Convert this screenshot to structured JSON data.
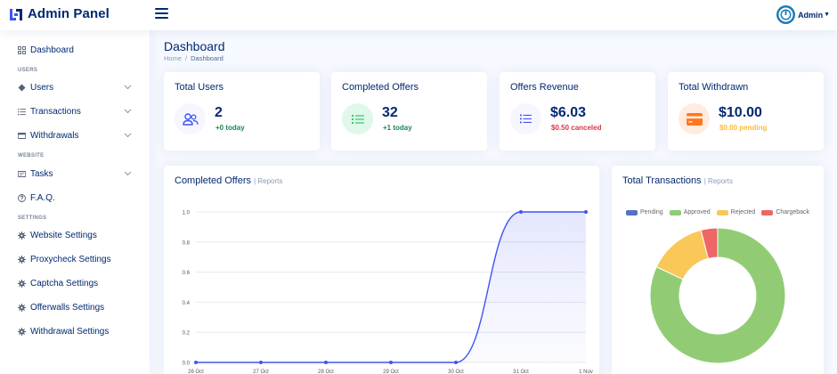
{
  "app": {
    "title": "Admin Panel",
    "user": "Admin"
  },
  "colors": {
    "primary": "#4154f1",
    "navy": "#012970",
    "green": "#2eca6a",
    "red": "#ff4d4d",
    "amber": "#ff771d"
  },
  "sidebar": {
    "items": [
      {
        "label": "Dashboard",
        "icon": "grid-icon"
      },
      {
        "heading": "USERS"
      },
      {
        "label": "Users",
        "icon": "users-icon",
        "expandable": true
      },
      {
        "label": "Transactions",
        "icon": "list-icon",
        "expandable": true
      },
      {
        "label": "Withdrawals",
        "icon": "wallet-icon",
        "expandable": true
      },
      {
        "heading": "WEBSITE"
      },
      {
        "label": "Tasks",
        "icon": "tasks-icon",
        "expandable": true
      },
      {
        "label": "F.A.Q.",
        "icon": "question-icon"
      },
      {
        "heading": "SETTINGS"
      },
      {
        "label": "Website Settings",
        "icon": "gear-icon"
      },
      {
        "label": "Proxycheck Settings",
        "icon": "gear-icon"
      },
      {
        "label": "Captcha Settings",
        "icon": "gear-icon"
      },
      {
        "label": "Offerwalls Settings",
        "icon": "gear-icon"
      },
      {
        "label": "Withdrawal Settings",
        "icon": "gear-icon"
      }
    ]
  },
  "page": {
    "title": "Dashboard",
    "breadcrumb": [
      "Home",
      "Dashboard"
    ]
  },
  "stats": [
    {
      "title": "Total Users",
      "value": "2",
      "sub": "+0 today",
      "icon": "users-icon"
    },
    {
      "title": "Completed Offers",
      "value": "32",
      "sub": "+1 today",
      "icon": "list-check-icon"
    },
    {
      "title": "Offers Revenue",
      "value": "$6.03",
      "sub": "$0.50 canceled",
      "icon": "list-icon"
    },
    {
      "title": "Total Withdrawn",
      "value": "$10.00",
      "sub": "$0.00 pending",
      "icon": "credit-card-icon"
    }
  ],
  "completed_chart": {
    "title": "Completed Offers",
    "subtitle": "| Reports"
  },
  "transactions_chart": {
    "title": "Total Transactions",
    "subtitle": "| Reports"
  },
  "chart_data": [
    {
      "type": "area",
      "title": "Completed Offers",
      "x": [
        "26 Oct",
        "27 Oct",
        "28 Oct",
        "29 Oct",
        "30 Oct",
        "31 Oct",
        "1 Nov"
      ],
      "series": [
        {
          "values": [
            0,
            0,
            0,
            0,
            0,
            1.0,
            1.0
          ]
        }
      ],
      "yticks": [
        "0.0",
        "0.2",
        "0.4",
        "0.6",
        "0.8",
        "1.0"
      ],
      "ylim": [
        0,
        1.0
      ],
      "grid": true
    },
    {
      "type": "pie",
      "title": "Total Transactions",
      "donut": true,
      "legend_position": "top",
      "labels": [
        "Pending",
        "Approved",
        "Rejected",
        "Chargeback"
      ],
      "values": [
        0,
        82,
        14,
        4
      ],
      "colors": [
        "#5470c6",
        "#91cc75",
        "#fac858",
        "#ee6666"
      ]
    }
  ]
}
